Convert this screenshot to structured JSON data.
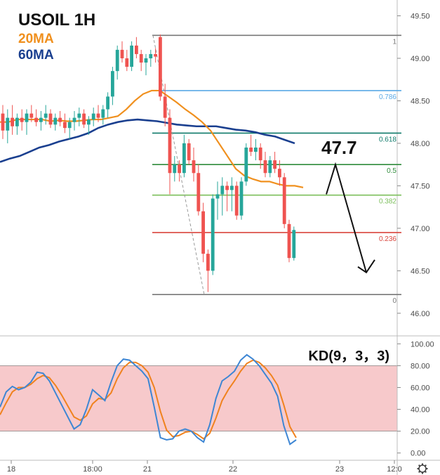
{
  "chart_data": [
    {
      "type": "candlestick",
      "title": "USOIL 1H",
      "legend": [
        {
          "name": "20MA",
          "color": "#f0901e"
        },
        {
          "name": "60MA",
          "color": "#1a3f8f"
        }
      ],
      "ylim": [
        45.8,
        49.62
      ],
      "y_ticks": [
        "49.50",
        "49.00",
        "48.50",
        "48.00",
        "47.50",
        "47.00",
        "46.50",
        "46.00"
      ],
      "y_tick_values": [
        49.5,
        49.0,
        48.5,
        48.0,
        47.5,
        47.0,
        46.5,
        46.0
      ],
      "colors": {
        "up": "#26a69a",
        "down": "#ef5350",
        "ma20": "#f0901e",
        "ma60": "#1a3f8f"
      },
      "candles": [
        [
          48.35,
          48.45,
          48.05,
          48.15
        ],
        [
          48.15,
          48.4,
          48.0,
          48.3
        ],
        [
          48.3,
          48.45,
          48.1,
          48.2
        ],
        [
          48.2,
          48.35,
          48.1,
          48.3
        ],
        [
          48.3,
          48.4,
          48.15,
          48.25
        ],
        [
          48.25,
          48.4,
          48.1,
          48.35
        ],
        [
          48.35,
          48.45,
          48.25,
          48.3
        ],
        [
          48.3,
          48.4,
          48.2,
          48.25
        ],
        [
          48.25,
          48.38,
          48.15,
          48.3
        ],
        [
          48.3,
          48.45,
          48.22,
          48.35
        ],
        [
          48.35,
          48.4,
          48.18,
          48.22
        ],
        [
          48.22,
          48.35,
          48.15,
          48.3
        ],
        [
          48.3,
          48.38,
          48.2,
          48.25
        ],
        [
          48.25,
          48.35,
          48.12,
          48.18
        ],
        [
          48.18,
          48.3,
          48.05,
          48.25
        ],
        [
          48.25,
          48.38,
          48.15,
          48.3
        ],
        [
          48.3,
          48.42,
          48.2,
          48.35
        ],
        [
          48.35,
          48.4,
          48.18,
          48.22
        ],
        [
          48.22,
          48.32,
          48.1,
          48.28
        ],
        [
          48.28,
          48.42,
          48.2,
          48.35
        ],
        [
          48.35,
          48.45,
          48.25,
          48.3
        ],
        [
          48.3,
          48.45,
          48.22,
          48.4
        ],
        [
          48.4,
          48.6,
          48.3,
          48.55
        ],
        [
          48.55,
          48.9,
          48.45,
          48.85
        ],
        [
          48.85,
          49.15,
          48.75,
          49.1
        ],
        [
          49.1,
          49.2,
          48.95,
          49.0
        ],
        [
          49.0,
          49.1,
          48.85,
          48.9
        ],
        [
          48.9,
          49.2,
          48.85,
          49.15
        ],
        [
          49.15,
          49.25,
          49.0,
          49.05
        ],
        [
          49.05,
          49.1,
          48.85,
          48.95
        ],
        [
          48.95,
          49.05,
          48.8,
          49.0
        ],
        [
          49.0,
          49.1,
          48.9,
          49.05
        ],
        [
          49.05,
          49.12,
          48.95,
          49.02
        ],
        [
          49.25,
          49.28,
          48.5,
          48.55
        ],
        [
          48.55,
          48.7,
          48.2,
          48.3
        ],
        [
          48.3,
          48.4,
          47.4,
          47.65
        ],
        [
          47.65,
          47.85,
          47.55,
          47.75
        ],
        [
          47.75,
          47.8,
          47.55,
          47.65
        ],
        [
          47.65,
          48.1,
          47.6,
          48.0
        ],
        [
          48.0,
          48.05,
          47.75,
          47.8
        ],
        [
          47.8,
          47.95,
          47.55,
          47.65
        ],
        [
          47.65,
          47.75,
          47.15,
          47.2
        ],
        [
          47.2,
          47.3,
          46.6,
          46.7
        ],
        [
          46.7,
          46.75,
          46.25,
          46.5
        ],
        [
          46.5,
          47.4,
          46.45,
          47.35
        ],
        [
          47.35,
          47.55,
          47.1,
          47.4
        ],
        [
          47.4,
          47.6,
          47.15,
          47.5
        ],
        [
          47.5,
          47.55,
          47.2,
          47.45
        ],
        [
          47.45,
          47.6,
          47.2,
          47.5
        ],
        [
          47.5,
          47.55,
          47.1,
          47.15
        ],
        [
          47.15,
          47.6,
          47.1,
          47.55
        ],
        [
          47.55,
          48.0,
          47.5,
          47.95
        ],
        [
          47.95,
          48.1,
          47.85,
          47.9
        ],
        [
          47.9,
          48.05,
          47.8,
          47.95
        ],
        [
          47.95,
          48.0,
          47.7,
          47.8
        ],
        [
          47.8,
          47.9,
          47.6,
          47.65
        ],
        [
          47.65,
          47.85,
          47.6,
          47.8
        ],
        [
          47.8,
          47.9,
          47.65,
          47.7
        ],
        [
          47.7,
          47.8,
          47.5,
          47.6
        ],
        [
          47.6,
          47.65,
          47.0,
          47.05
        ],
        [
          47.05,
          47.1,
          46.6,
          46.65
        ],
        [
          46.65,
          47.02,
          46.62,
          46.98
        ]
      ],
      "ma20": [
        48.25,
        48.25,
        48.28,
        48.28,
        48.28,
        48.28,
        48.26,
        48.27,
        48.26,
        48.26,
        48.27,
        48.28,
        48.28,
        48.3,
        48.32,
        48.4,
        48.5,
        48.58,
        48.62,
        48.62,
        48.55,
        48.48,
        48.4,
        48.33,
        48.25,
        48.15,
        48.0,
        47.85,
        47.7,
        47.62,
        47.58,
        47.55,
        47.55,
        47.52,
        47.5,
        47.5,
        47.48
      ],
      "ma60": [
        47.78,
        47.82,
        47.85,
        47.9,
        47.95,
        47.98,
        48.02,
        48.05,
        48.08,
        48.12,
        48.18,
        48.22,
        48.25,
        48.27,
        48.28,
        48.27,
        48.26,
        48.24,
        48.22,
        48.21,
        48.2,
        48.2,
        48.2,
        48.18,
        48.16,
        48.15,
        48.13,
        48.1,
        48.08,
        48.04,
        48.0
      ],
      "fibonacci": [
        {
          "label": "1",
          "value": 49.27,
          "color": "#787878"
        },
        {
          "label": "0.786",
          "value": 48.62,
          "color": "#5aa9e6"
        },
        {
          "label": "0.618",
          "value": 48.12,
          "color": "#0e7a6a"
        },
        {
          "label": "0.5",
          "value": 47.75,
          "color": "#2e8b3a"
        },
        {
          "label": "0.382",
          "value": 47.39,
          "color": "#7cbf5c"
        },
        {
          "label": "0.236",
          "value": 46.95,
          "color": "#d9453d"
        },
        {
          "label": "0",
          "value": 46.22,
          "color": "#787878"
        }
      ],
      "annotation": {
        "text": "47.7",
        "arrow": [
          [
            47.4,
            0
          ],
          [
            47.75,
            1
          ],
          [
            46.48,
            2
          ]
        ]
      }
    },
    {
      "type": "line",
      "title": "KD(9，3，3)",
      "ylim": [
        -6,
        106
      ],
      "y_ticks": [
        "100.00",
        "80.00",
        "60.00",
        "40.00",
        "20.00",
        "0.00"
      ],
      "y_tick_values": [
        100,
        80,
        60,
        40,
        20,
        0
      ],
      "band": [
        20,
        80
      ],
      "colors": {
        "k": "#3d86d4",
        "d": "#f0821e",
        "band": "#f7c9cb"
      },
      "k": [
        42,
        56,
        61,
        58,
        60,
        65,
        74,
        73,
        66,
        55,
        44,
        33,
        22,
        26,
        40,
        58,
        53,
        48,
        65,
        80,
        86,
        85,
        80,
        75,
        68,
        42,
        14,
        12,
        13,
        20,
        22,
        20,
        14,
        10,
        26,
        50,
        66,
        70,
        75,
        85,
        90,
        86,
        80,
        72,
        64,
        52,
        25,
        8,
        12
      ],
      "d": [
        35,
        46,
        56,
        60,
        60,
        63,
        68,
        71,
        69,
        62,
        53,
        43,
        33,
        30,
        34,
        45,
        50,
        49,
        55,
        68,
        78,
        83,
        83,
        80,
        74,
        60,
        38,
        21,
        15,
        16,
        19,
        20,
        17,
        13,
        18,
        32,
        48,
        58,
        66,
        75,
        82,
        85,
        83,
        78,
        71,
        62,
        44,
        24,
        14
      ]
    }
  ],
  "x_ticks": [
    "18",
    "18:00",
    "21",
    "22",
    "23",
    "12:0"
  ],
  "settings_icon": "gear-icon"
}
